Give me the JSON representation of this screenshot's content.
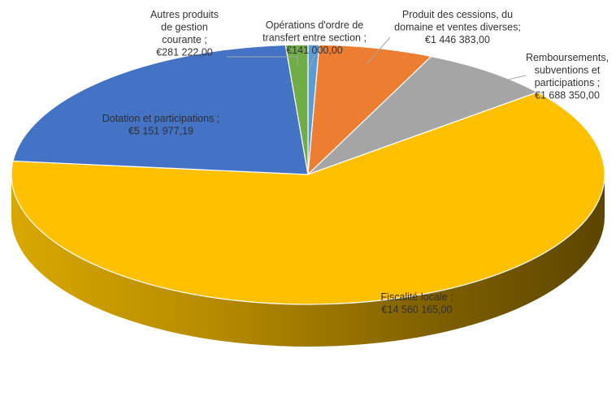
{
  "chart_data": {
    "type": "pie",
    "style": "3d-exploded-none",
    "slices": [
      {
        "name": "Opérations d'ordre de transfert entre section",
        "value": 141000.0,
        "label_lines": [
          "Opérations d'ordre de",
          "transfert entre section ;",
          "€141 000,00"
        ],
        "color": "#5b9bd5"
      },
      {
        "name": "Produit des cessions, du domaine et ventes diverses",
        "value": 1446383.0,
        "label_lines": [
          "Produit des cessions, du",
          "domaine et ventes diverses;",
          "€1 446 383,00"
        ],
        "color": "#ed7d31"
      },
      {
        "name": "Remboursements, subventions et participations",
        "value": 1688350.0,
        "label_lines": [
          "Remboursements,",
          "subventions et",
          "participations ;",
          "€1 688 350,00"
        ],
        "color": "#a5a5a5"
      },
      {
        "name": "Fiscalité locale",
        "value": 14560165.0,
        "label_lines": [
          "Fiscalité locale ;",
          "€14 560 165,00"
        ],
        "color": "#ffc000"
      },
      {
        "name": "Dotation et participations",
        "value": 5151977.19,
        "label_lines": [
          "Dotation et participations ;",
          "€5 151 977,19"
        ],
        "color": "#4472c4"
      },
      {
        "name": "Autres produits de gestion courante",
        "value": 281222.0,
        "label_lines": [
          "Autres produits",
          "de gestion",
          "courante ;",
          "€281 222,00"
        ],
        "color": "#70ad47"
      }
    ]
  }
}
